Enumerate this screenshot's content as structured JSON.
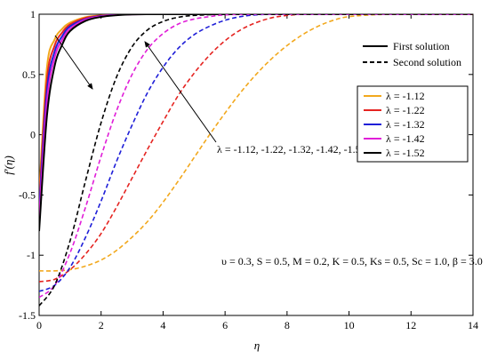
{
  "chart_data": {
    "type": "line",
    "xlabel": "η",
    "ylabel": "f′(η)",
    "xlim": [
      0,
      14
    ],
    "ylim": [
      -1.5,
      1
    ],
    "x_ticks": [
      "0",
      "2",
      "4",
      "6",
      "8",
      "10",
      "12",
      "14"
    ],
    "y_ticks": [
      "-1.5",
      "-1",
      "-0.5",
      "0",
      "0.5",
      "1"
    ],
    "grid": false,
    "legend_style": {
      "position": "top-right",
      "entries": [
        {
          "label": "First solution",
          "dash": "solid"
        },
        {
          "label": "Second solution",
          "dash": "dashed"
        }
      ]
    },
    "legend_lambda": {
      "position": "right",
      "entries": [
        {
          "label": "λ = -1.12",
          "color": "#f2a81d"
        },
        {
          "label": "λ = -1.22",
          "color": "#e52421"
        },
        {
          "label": "λ = -1.32",
          "color": "#1f1fd8"
        },
        {
          "label": "λ = -1.42",
          "color": "#e01ed8"
        },
        {
          "label": "λ = -1.52",
          "color": "#000000"
        }
      ]
    },
    "annotation_lambda": "λ = -1.12, -1.22, -1.32, -1.42, -1.52",
    "annotation_params": "υ = 0.3, S = 0.5, M = 0.2, K = 0.5, Ks = 0.5, Sc = 1.0, β = 3.0",
    "series": [
      {
        "solution": "first",
        "lambda": -1.12,
        "color": "#f2a81d",
        "dash": "solid",
        "x": [
          0,
          0.25,
          0.5,
          0.75,
          1,
          1.5,
          2,
          2.5,
          3,
          3.5,
          4,
          14
        ],
        "y": [
          -0.5,
          0.55,
          0.79,
          0.88,
          0.93,
          0.975,
          0.99,
          0.997,
          1.0,
          1.0,
          1.0,
          1.0
        ]
      },
      {
        "solution": "first",
        "lambda": -1.22,
        "color": "#e52421",
        "dash": "solid",
        "x": [
          0,
          0.25,
          0.5,
          0.75,
          1,
          1.5,
          2,
          2.5,
          3,
          3.5,
          4,
          14
        ],
        "y": [
          -0.57,
          0.45,
          0.74,
          0.85,
          0.915,
          0.97,
          0.988,
          0.996,
          1.0,
          1.0,
          1.0,
          1.0
        ]
      },
      {
        "solution": "first",
        "lambda": -1.32,
        "color": "#1f1fd8",
        "dash": "solid",
        "x": [
          0,
          0.25,
          0.5,
          0.75,
          1,
          1.5,
          2,
          2.5,
          3,
          3.5,
          4,
          14
        ],
        "y": [
          -0.63,
          0.36,
          0.69,
          0.82,
          0.9,
          0.96,
          0.985,
          0.995,
          1.0,
          1.0,
          1.0,
          1.0
        ]
      },
      {
        "solution": "first",
        "lambda": -1.42,
        "color": "#e01ed8",
        "dash": "solid",
        "x": [
          0,
          0.25,
          0.5,
          0.75,
          1,
          1.5,
          2,
          2.5,
          3,
          3.5,
          4,
          14
        ],
        "y": [
          -0.7,
          0.27,
          0.64,
          0.79,
          0.88,
          0.955,
          0.982,
          0.994,
          0.999,
          1.0,
          1.0,
          1.0
        ]
      },
      {
        "solution": "first",
        "lambda": -1.52,
        "color": "#000000",
        "dash": "solid",
        "x": [
          0,
          0.25,
          0.5,
          0.75,
          1,
          1.5,
          2,
          2.5,
          3,
          3.5,
          4,
          14
        ],
        "y": [
          -0.8,
          0.15,
          0.57,
          0.75,
          0.86,
          0.945,
          0.978,
          0.992,
          0.998,
          1.0,
          1.0,
          1.0
        ]
      },
      {
        "solution": "second",
        "lambda": -1.12,
        "color": "#f2a81d",
        "dash": "dashed",
        "x": [
          0,
          0.5,
          1,
          1.5,
          2,
          2.5,
          3,
          3.5,
          4,
          4.5,
          5,
          5.5,
          6,
          6.5,
          7,
          7.5,
          8,
          8.5,
          9,
          9.5,
          10,
          11,
          12,
          14
        ],
        "y": [
          -1.13,
          -1.13,
          -1.12,
          -1.09,
          -1.04,
          -0.96,
          -0.85,
          -0.72,
          -0.56,
          -0.38,
          -0.19,
          0.0,
          0.18,
          0.35,
          0.5,
          0.63,
          0.74,
          0.83,
          0.9,
          0.95,
          0.98,
          0.998,
          1.0,
          1.0
        ]
      },
      {
        "solution": "second",
        "lambda": -1.22,
        "color": "#e52421",
        "dash": "dashed",
        "x": [
          0,
          0.5,
          1,
          1.5,
          2,
          2.5,
          3,
          3.5,
          4,
          4.5,
          5,
          5.5,
          6,
          6.5,
          7,
          7.5,
          8,
          8.5,
          9,
          10,
          14
        ],
        "y": [
          -1.22,
          -1.2,
          -1.12,
          -0.99,
          -0.82,
          -0.6,
          -0.36,
          -0.12,
          0.11,
          0.33,
          0.51,
          0.66,
          0.78,
          0.87,
          0.93,
          0.97,
          0.99,
          1.0,
          1.0,
          1.0,
          1.0
        ]
      },
      {
        "solution": "second",
        "lambda": -1.32,
        "color": "#1f1fd8",
        "dash": "dashed",
        "x": [
          0,
          0.5,
          1,
          1.5,
          2,
          2.5,
          3,
          3.5,
          4,
          4.5,
          5,
          5.5,
          6,
          6.5,
          7,
          7.5,
          8,
          9,
          14
        ],
        "y": [
          -1.3,
          -1.25,
          -1.1,
          -0.85,
          -0.55,
          -0.22,
          0.08,
          0.35,
          0.56,
          0.72,
          0.83,
          0.9,
          0.95,
          0.98,
          0.995,
          1.0,
          1.0,
          1.0,
          1.0
        ]
      },
      {
        "solution": "second",
        "lambda": -1.42,
        "color": "#e01ed8",
        "dash": "dashed",
        "x": [
          0,
          0.5,
          1,
          1.5,
          2,
          2.5,
          3,
          3.5,
          4,
          4.5,
          5,
          5.5,
          6,
          7,
          8,
          14
        ],
        "y": [
          -1.35,
          -1.25,
          -0.98,
          -0.6,
          -0.18,
          0.2,
          0.5,
          0.71,
          0.84,
          0.92,
          0.96,
          0.98,
          0.995,
          1.0,
          1.0,
          1.0
        ]
      },
      {
        "solution": "second",
        "lambda": -1.52,
        "color": "#000000",
        "dash": "dashed",
        "x": [
          0,
          0.5,
          1,
          1.5,
          2,
          2.5,
          3,
          3.5,
          4,
          4.5,
          5,
          6,
          7,
          14
        ],
        "y": [
          -1.42,
          -1.25,
          -0.88,
          -0.38,
          0.1,
          0.48,
          0.73,
          0.87,
          0.94,
          0.975,
          0.99,
          1.0,
          1.0,
          1.0
        ]
      }
    ]
  }
}
